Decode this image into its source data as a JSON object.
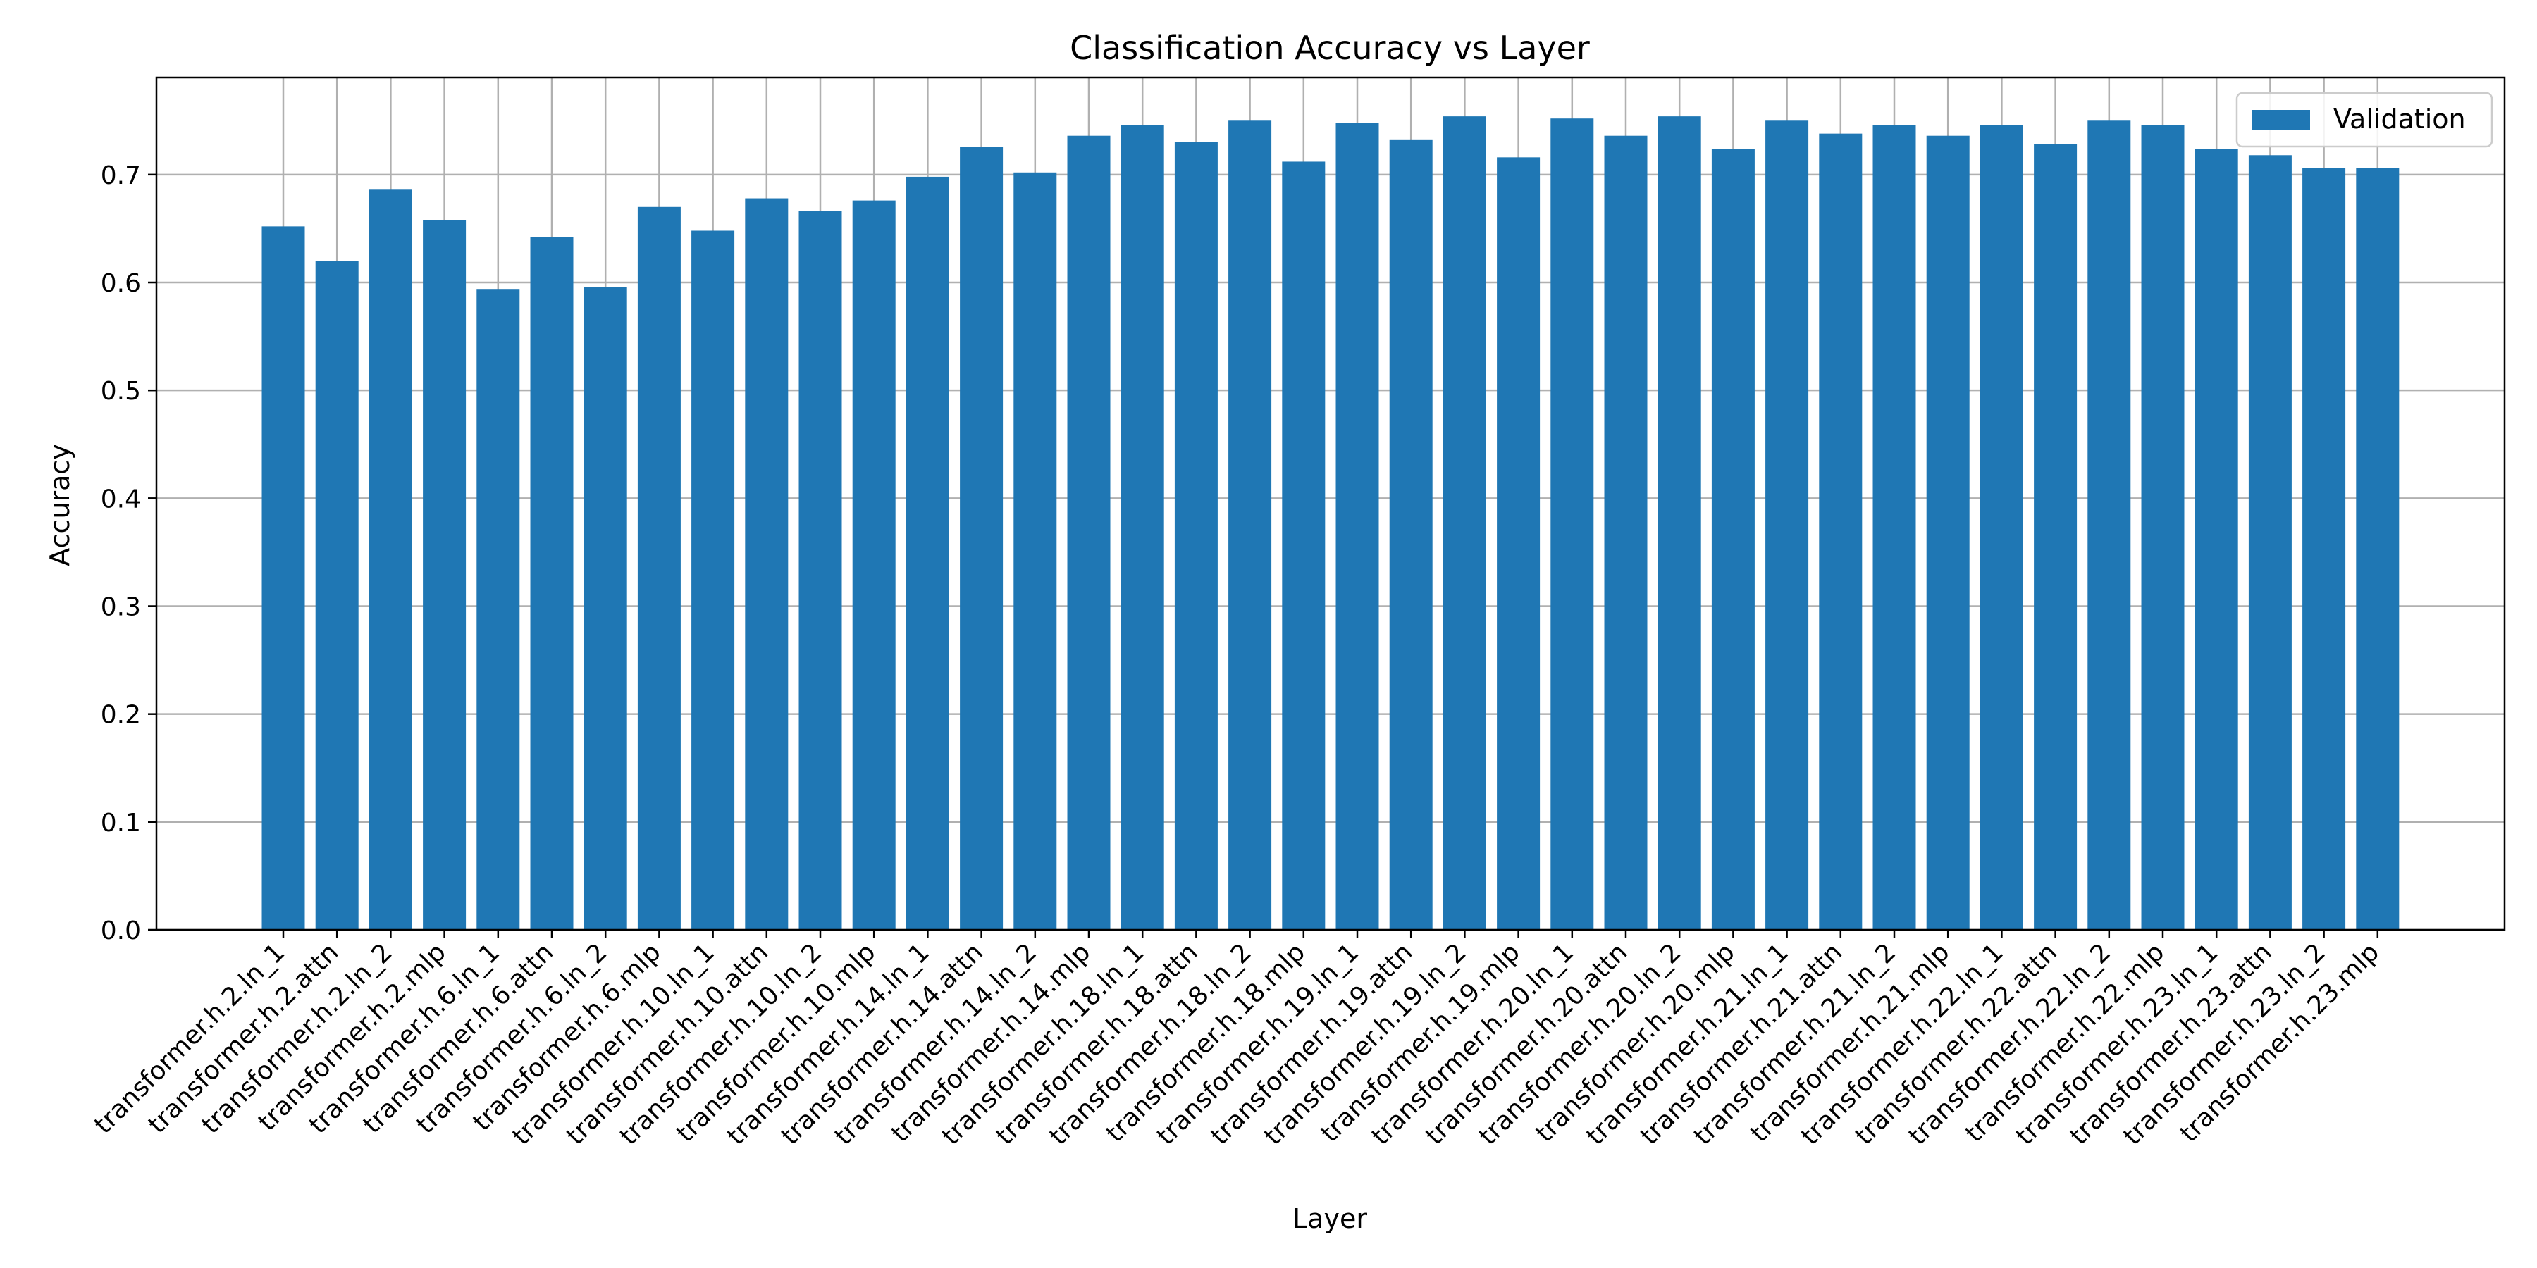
{
  "chart_data": {
    "type": "bar",
    "title": "Classification Accuracy vs Layer",
    "xlabel": "Layer",
    "ylabel": "Accuracy",
    "ylim": [
      0,
      0.79
    ],
    "yticks": [
      "0.0",
      "0.1",
      "0.2",
      "0.3",
      "0.4",
      "0.5",
      "0.6",
      "0.7"
    ],
    "grid": true,
    "legend_position": "top-right",
    "categories": [
      "transformer.h.2.ln_1",
      "transformer.h.2.attn",
      "transformer.h.2.ln_2",
      "transformer.h.2.mlp",
      "transformer.h.6.ln_1",
      "transformer.h.6.attn",
      "transformer.h.6.ln_2",
      "transformer.h.6.mlp",
      "transformer.h.10.ln_1",
      "transformer.h.10.attn",
      "transformer.h.10.ln_2",
      "transformer.h.10.mlp",
      "transformer.h.14.ln_1",
      "transformer.h.14.attn",
      "transformer.h.14.ln_2",
      "transformer.h.14.mlp",
      "transformer.h.18.ln_1",
      "transformer.h.18.attn",
      "transformer.h.18.ln_2",
      "transformer.h.18.mlp",
      "transformer.h.19.ln_1",
      "transformer.h.19.attn",
      "transformer.h.19.ln_2",
      "transformer.h.19.mlp",
      "transformer.h.20.ln_1",
      "transformer.h.20.attn",
      "transformer.h.20.ln_2",
      "transformer.h.20.mlp",
      "transformer.h.21.ln_1",
      "transformer.h.21.attn",
      "transformer.h.21.ln_2",
      "transformer.h.21.mlp",
      "transformer.h.22.ln_1",
      "transformer.h.22.attn",
      "transformer.h.22.ln_2",
      "transformer.h.22.mlp",
      "transformer.h.23.ln_1",
      "transformer.h.23.attn",
      "transformer.h.23.ln_2",
      "transformer.h.23.mlp"
    ],
    "series": [
      {
        "name": "Validation",
        "color": "#1f77b4",
        "values": [
          0.652,
          0.62,
          0.686,
          0.658,
          0.594,
          0.642,
          0.596,
          0.67,
          0.648,
          0.678,
          0.666,
          0.676,
          0.698,
          0.726,
          0.702,
          0.736,
          0.746,
          0.73,
          0.75,
          0.712,
          0.748,
          0.732,
          0.754,
          0.716,
          0.752,
          0.736,
          0.754,
          0.724,
          0.75,
          0.738,
          0.746,
          0.736,
          0.746,
          0.728,
          0.75,
          0.746,
          0.724,
          0.718,
          0.706,
          0.706
        ]
      }
    ]
  }
}
